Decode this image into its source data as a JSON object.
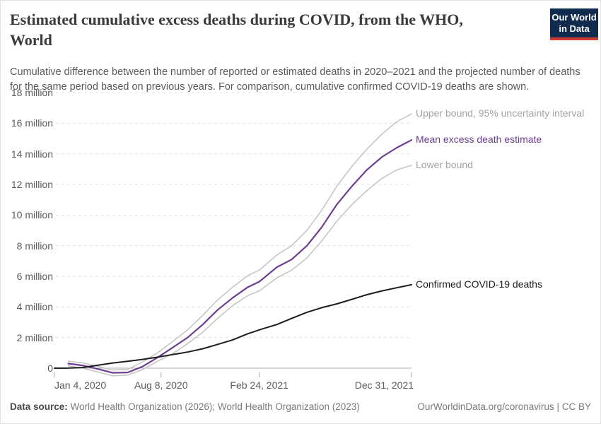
{
  "header": {
    "title_line1": "Estimated cumulative excess deaths during COVID, from the WHO,",
    "title_line2": "World",
    "subtitle": "Cumulative difference between the number of reported or estimated deaths in 2020–2021 and the projected number of deaths for the same period based on previous years. For comparison, cumulative confirmed COVID-19 deaths are shown.",
    "logo": {
      "line1": "Our World",
      "line2": "in Data"
    }
  },
  "footer": {
    "source_label": "Data source:",
    "source_text": " World Health Organization (2026); World Health Organization (2023)",
    "right_text": "OurWorldinData.org/coronavirus | CC BY"
  },
  "colors": {
    "accent_purple": "#6d3e91",
    "bound_gray": "#c6c6c6",
    "confirmed_black": "#1d1d1d",
    "logo_navy": "#112b4e",
    "logo_red": "#d23b33"
  },
  "chart_data": {
    "type": "line",
    "title": "Estimated cumulative excess deaths during COVID, from the WHO, World",
    "xlabel": "",
    "ylabel": "",
    "x_unit": "days since Jan 4, 2020",
    "ylim": [
      -0.6,
      18
    ],
    "y_unit": "million deaths",
    "grid": "dashed-horizontal",
    "legend_position": "end-of-line-labels",
    "x_ticks": [
      {
        "d": 0,
        "label": "Jan 4, 2020",
        "align": "left"
      },
      {
        "d": 217,
        "label": "Aug 8, 2020",
        "align": "center"
      },
      {
        "d": 417,
        "label": "Feb 24, 2021",
        "align": "center"
      },
      {
        "d": 727,
        "label": "Dec 31, 2021",
        "align": "right"
      }
    ],
    "y_ticks": [
      {
        "v": 0,
        "label": "0"
      },
      {
        "v": 2,
        "label": "2 million"
      },
      {
        "v": 4,
        "label": "4 million"
      },
      {
        "v": 6,
        "label": "6 million"
      },
      {
        "v": 8,
        "label": "8 million"
      },
      {
        "v": 10,
        "label": "10 million"
      },
      {
        "v": 12,
        "label": "12 million"
      },
      {
        "v": 14,
        "label": "14 million"
      },
      {
        "v": 16,
        "label": "16 million"
      },
      {
        "v": 18,
        "label": "18 million"
      }
    ],
    "series": [
      {
        "name": "Upper bound, 95% uncertainty interval",
        "color": "#c6c6c6",
        "label_color": "#a3a3a3",
        "width": 1.6,
        "points": [
          [
            28,
            0.45
          ],
          [
            57,
            0.35
          ],
          [
            88,
            0.12
          ],
          [
            118,
            -0.12
          ],
          [
            149,
            -0.08
          ],
          [
            179,
            0.4
          ],
          [
            210,
            1.0
          ],
          [
            241,
            1.75
          ],
          [
            271,
            2.5
          ],
          [
            302,
            3.45
          ],
          [
            332,
            4.45
          ],
          [
            363,
            5.3
          ],
          [
            394,
            6.05
          ],
          [
            417,
            6.4
          ],
          [
            453,
            7.4
          ],
          [
            483,
            8.0
          ],
          [
            514,
            9.0
          ],
          [
            544,
            10.3
          ],
          [
            575,
            11.9
          ],
          [
            606,
            13.2
          ],
          [
            636,
            14.3
          ],
          [
            667,
            15.3
          ],
          [
            697,
            16.1
          ],
          [
            727,
            16.6
          ]
        ]
      },
      {
        "name": "Mean excess death estimate",
        "color": "#6d3e91",
        "label_color": "#6d3e91",
        "width": 2.2,
        "points": [
          [
            28,
            0.3
          ],
          [
            57,
            0.18
          ],
          [
            88,
            -0.05
          ],
          [
            118,
            -0.3
          ],
          [
            149,
            -0.28
          ],
          [
            179,
            0.1
          ],
          [
            210,
            0.7
          ],
          [
            241,
            1.35
          ],
          [
            271,
            2.0
          ],
          [
            302,
            2.85
          ],
          [
            332,
            3.8
          ],
          [
            363,
            4.6
          ],
          [
            394,
            5.3
          ],
          [
            417,
            5.65
          ],
          [
            453,
            6.6
          ],
          [
            483,
            7.1
          ],
          [
            514,
            8.0
          ],
          [
            544,
            9.2
          ],
          [
            575,
            10.7
          ],
          [
            606,
            11.9
          ],
          [
            636,
            12.95
          ],
          [
            667,
            13.8
          ],
          [
            697,
            14.4
          ],
          [
            727,
            14.9
          ]
        ]
      },
      {
        "name": "Lower bound",
        "color": "#c6c6c6",
        "label_color": "#a3a3a3",
        "width": 1.6,
        "points": [
          [
            28,
            0.15
          ],
          [
            57,
            0.0
          ],
          [
            88,
            -0.25
          ],
          [
            118,
            -0.5
          ],
          [
            149,
            -0.45
          ],
          [
            179,
            -0.1
          ],
          [
            210,
            0.45
          ],
          [
            241,
            0.95
          ],
          [
            271,
            1.6
          ],
          [
            302,
            2.35
          ],
          [
            332,
            3.25
          ],
          [
            363,
            4.1
          ],
          [
            394,
            4.75
          ],
          [
            417,
            5.05
          ],
          [
            453,
            5.9
          ],
          [
            483,
            6.4
          ],
          [
            514,
            7.2
          ],
          [
            544,
            8.3
          ],
          [
            575,
            9.6
          ],
          [
            606,
            10.7
          ],
          [
            636,
            11.6
          ],
          [
            667,
            12.4
          ],
          [
            697,
            12.95
          ],
          [
            727,
            13.25
          ]
        ]
      },
      {
        "name": "Confirmed COVID-19 deaths",
        "color": "#1d1d1d",
        "label_color": "#1d1d1d",
        "width": 2,
        "points": [
          [
            0,
            0.0
          ],
          [
            28,
            0.003
          ],
          [
            57,
            0.04
          ],
          [
            88,
            0.19
          ],
          [
            118,
            0.33
          ],
          [
            149,
            0.45
          ],
          [
            179,
            0.57
          ],
          [
            210,
            0.72
          ],
          [
            241,
            0.89
          ],
          [
            271,
            1.05
          ],
          [
            302,
            1.27
          ],
          [
            332,
            1.55
          ],
          [
            363,
            1.85
          ],
          [
            394,
            2.25
          ],
          [
            422,
            2.55
          ],
          [
            453,
            2.85
          ],
          [
            483,
            3.25
          ],
          [
            514,
            3.65
          ],
          [
            544,
            3.95
          ],
          [
            575,
            4.2
          ],
          [
            606,
            4.5
          ],
          [
            636,
            4.8
          ],
          [
            667,
            5.05
          ],
          [
            697,
            5.25
          ],
          [
            727,
            5.45
          ]
        ]
      }
    ]
  }
}
